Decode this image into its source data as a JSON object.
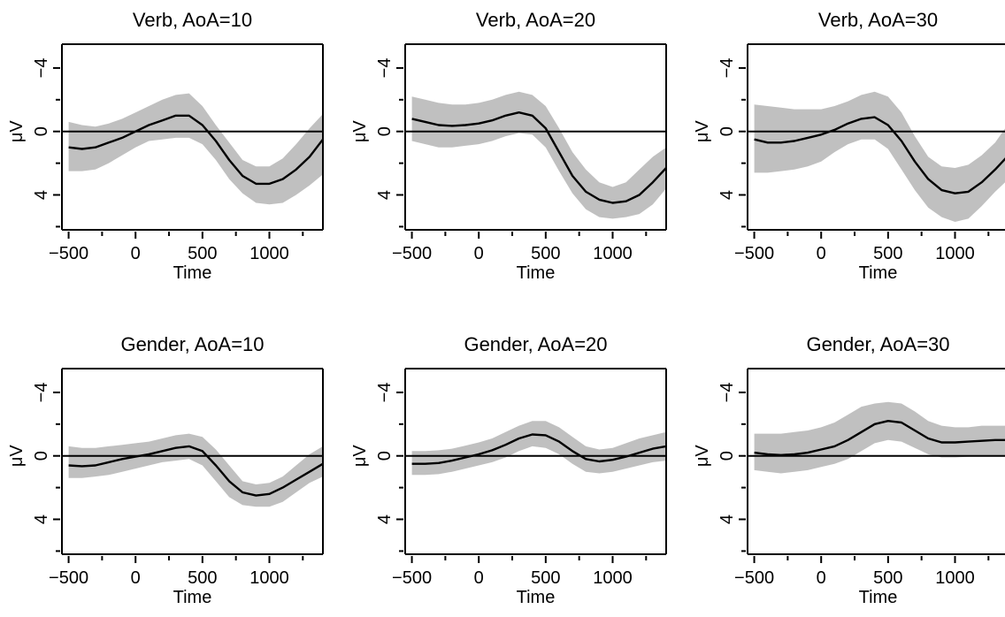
{
  "chart_data": [
    {
      "type": "line",
      "title": "Verb, AoA=10",
      "xlabel": "Time",
      "ylabel": "μV",
      "xlim": [
        -550,
        1400
      ],
      "ylim": [
        -5.5,
        6.2
      ],
      "y_reversed": true,
      "xticks": [
        -500,
        0,
        500,
        1000
      ],
      "xtick_labels": [
        "−500",
        "0",
        "500",
        "1000"
      ],
      "yticks": [
        -4,
        0,
        4
      ],
      "ytick_labels": [
        "−4",
        "0",
        "4"
      ],
      "reference_line_y": 0,
      "series": [
        {
          "x": [
            -500,
            -400,
            -300,
            -200,
            -100,
            0,
            100,
            200,
            300,
            400,
            500,
            600,
            700,
            800,
            900,
            1000,
            1100,
            1200,
            1300,
            1400
          ],
          "values": [
            1.0,
            1.1,
            1.0,
            0.7,
            0.4,
            0.0,
            -0.4,
            -0.7,
            -1.0,
            -1.0,
            -0.4,
            0.6,
            1.8,
            2.8,
            3.3,
            3.3,
            3.0,
            2.4,
            1.6,
            0.5
          ],
          "lower": [
            -0.6,
            -0.4,
            -0.3,
            -0.5,
            -0.8,
            -1.2,
            -1.6,
            -2.0,
            -2.3,
            -2.4,
            -1.6,
            -0.4,
            0.7,
            1.8,
            2.2,
            2.2,
            1.7,
            0.8,
            -0.2,
            -1.1
          ],
          "upper": [
            2.5,
            2.5,
            2.4,
            2.0,
            1.5,
            1.0,
            0.6,
            0.5,
            0.4,
            0.4,
            0.8,
            1.8,
            3.0,
            3.9,
            4.5,
            4.6,
            4.5,
            4.0,
            3.4,
            2.7
          ]
        }
      ]
    },
    {
      "type": "line",
      "title": "Verb, AoA=20",
      "xlabel": "Time",
      "ylabel": "μV",
      "xlim": [
        -550,
        1400
      ],
      "ylim": [
        -5.5,
        6.2
      ],
      "y_reversed": true,
      "xticks": [
        -500,
        0,
        500,
        1000
      ],
      "xtick_labels": [
        "−500",
        "0",
        "500",
        "1000"
      ],
      "yticks": [
        -4,
        0,
        4
      ],
      "ytick_labels": [
        "−4",
        "0",
        "4"
      ],
      "reference_line_y": 0,
      "series": [
        {
          "x": [
            -500,
            -400,
            -300,
            -200,
            -100,
            0,
            100,
            200,
            300,
            400,
            500,
            600,
            700,
            800,
            900,
            1000,
            1100,
            1200,
            1300,
            1400
          ],
          "values": [
            -0.8,
            -0.6,
            -0.4,
            -0.35,
            -0.4,
            -0.5,
            -0.7,
            -1.0,
            -1.2,
            -1.0,
            -0.2,
            1.3,
            2.8,
            3.8,
            4.3,
            4.5,
            4.4,
            4.0,
            3.2,
            2.3
          ],
          "lower": [
            -2.2,
            -2.0,
            -1.8,
            -1.7,
            -1.7,
            -1.8,
            -2.0,
            -2.3,
            -2.5,
            -2.3,
            -1.6,
            -0.2,
            1.3,
            2.4,
            3.2,
            3.5,
            3.2,
            2.4,
            1.6,
            1.0
          ],
          "upper": [
            0.6,
            0.8,
            1.0,
            1.0,
            0.9,
            0.8,
            0.6,
            0.3,
            0.1,
            0.2,
            1.0,
            2.5,
            3.9,
            4.9,
            5.4,
            5.5,
            5.4,
            5.2,
            4.6,
            3.6
          ]
        }
      ]
    },
    {
      "type": "line",
      "title": "Verb, AoA=30",
      "xlabel": "Time",
      "ylabel": "μV",
      "xlim": [
        -550,
        1400
      ],
      "ylim": [
        -5.5,
        6.2
      ],
      "y_reversed": true,
      "xticks": [
        -500,
        0,
        500,
        1000
      ],
      "xtick_labels": [
        "−500",
        "0",
        "500",
        "1000"
      ],
      "yticks": [
        -4,
        0,
        4
      ],
      "ytick_labels": [
        "−4",
        "0",
        "4"
      ],
      "reference_line_y": 0,
      "series": [
        {
          "x": [
            -500,
            -400,
            -300,
            -200,
            -100,
            0,
            100,
            200,
            300,
            400,
            500,
            600,
            700,
            800,
            900,
            1000,
            1100,
            1200,
            1300,
            1400
          ],
          "values": [
            0.5,
            0.7,
            0.7,
            0.6,
            0.4,
            0.2,
            -0.1,
            -0.5,
            -0.8,
            -0.9,
            -0.4,
            0.6,
            1.9,
            3.0,
            3.7,
            3.9,
            3.8,
            3.2,
            2.4,
            1.5
          ],
          "lower": [
            -1.7,
            -1.6,
            -1.5,
            -1.4,
            -1.4,
            -1.4,
            -1.6,
            -1.9,
            -2.3,
            -2.5,
            -2.2,
            -1.2,
            0.3,
            1.6,
            2.2,
            2.3,
            2.1,
            1.5,
            0.7,
            -0.5
          ],
          "upper": [
            2.6,
            2.6,
            2.5,
            2.4,
            2.2,
            1.9,
            1.3,
            0.8,
            0.5,
            0.5,
            1.1,
            2.4,
            3.7,
            4.8,
            5.4,
            5.7,
            5.5,
            4.7,
            3.8,
            3.0
          ]
        }
      ]
    },
    {
      "type": "line",
      "title": "Gender, AoA=10",
      "xlabel": "Time",
      "ylabel": "μV",
      "xlim": [
        -550,
        1400
      ],
      "ylim": [
        -5.5,
        6.2
      ],
      "y_reversed": true,
      "xticks": [
        -500,
        0,
        500,
        1000
      ],
      "xtick_labels": [
        "−500",
        "0",
        "500",
        "1000"
      ],
      "yticks": [
        -4,
        0,
        4
      ],
      "ytick_labels": [
        "−4",
        "0",
        "4"
      ],
      "reference_line_y": 0,
      "series": [
        {
          "x": [
            -500,
            -400,
            -300,
            -200,
            -100,
            0,
            100,
            200,
            300,
            400,
            500,
            600,
            700,
            800,
            900,
            1000,
            1100,
            1200,
            1300,
            1400
          ],
          "values": [
            0.6,
            0.65,
            0.6,
            0.4,
            0.2,
            0.05,
            -0.1,
            -0.3,
            -0.5,
            -0.6,
            -0.3,
            0.6,
            1.6,
            2.3,
            2.5,
            2.4,
            2.0,
            1.5,
            1.0,
            0.5
          ],
          "lower": [
            -0.6,
            -0.5,
            -0.5,
            -0.6,
            -0.7,
            -0.8,
            -0.9,
            -1.1,
            -1.3,
            -1.4,
            -1.2,
            -0.4,
            0.6,
            1.6,
            1.8,
            1.7,
            1.3,
            0.6,
            -0.1,
            -0.6
          ],
          "upper": [
            1.4,
            1.4,
            1.3,
            1.2,
            1.0,
            0.8,
            0.6,
            0.4,
            0.3,
            0.2,
            0.6,
            1.6,
            2.6,
            3.1,
            3.2,
            3.2,
            2.9,
            2.3,
            1.7,
            1.3
          ]
        }
      ]
    },
    {
      "type": "line",
      "title": "Gender, AoA=20",
      "xlabel": "Time",
      "ylabel": "μV",
      "xlim": [
        -550,
        1400
      ],
      "ylim": [
        -5.5,
        6.2
      ],
      "y_reversed": true,
      "xticks": [
        -500,
        0,
        500,
        1000
      ],
      "xtick_labels": [
        "−500",
        "0",
        "500",
        "1000"
      ],
      "yticks": [
        -4,
        0,
        4
      ],
      "ytick_labels": [
        "−4",
        "0",
        "4"
      ],
      "reference_line_y": 0,
      "series": [
        {
          "x": [
            -500,
            -400,
            -300,
            -200,
            -100,
            0,
            100,
            200,
            300,
            400,
            500,
            600,
            700,
            800,
            900,
            1000,
            1100,
            1200,
            1300,
            1400
          ],
          "values": [
            0.5,
            0.5,
            0.45,
            0.3,
            0.1,
            -0.1,
            -0.35,
            -0.7,
            -1.1,
            -1.35,
            -1.3,
            -0.9,
            -0.3,
            0.2,
            0.35,
            0.25,
            0.05,
            -0.2,
            -0.45,
            -0.6
          ],
          "lower": [
            -0.3,
            -0.3,
            -0.35,
            -0.45,
            -0.65,
            -0.85,
            -1.1,
            -1.5,
            -1.9,
            -2.2,
            -2.2,
            -1.8,
            -1.2,
            -0.6,
            -0.4,
            -0.5,
            -0.8,
            -1.1,
            -1.3,
            -1.5
          ],
          "upper": [
            1.2,
            1.2,
            1.15,
            1.0,
            0.8,
            0.6,
            0.4,
            0.1,
            -0.3,
            -0.6,
            -0.5,
            -0.1,
            0.5,
            1.0,
            1.1,
            1.0,
            0.8,
            0.6,
            0.4,
            0.3
          ]
        }
      ]
    },
    {
      "type": "line",
      "title": "Gender, AoA=30",
      "xlabel": "Time",
      "ylabel": "μV",
      "xlim": [
        -550,
        1400
      ],
      "ylim": [
        -5.5,
        6.2
      ],
      "y_reversed": true,
      "xticks": [
        -500,
        0,
        500,
        1000
      ],
      "xtick_labels": [
        "−500",
        "0",
        "500",
        "1000"
      ],
      "yticks": [
        -4,
        0,
        4
      ],
      "ytick_labels": [
        "−4",
        "0",
        "4"
      ],
      "reference_line_y": 0,
      "series": [
        {
          "x": [
            -500,
            -400,
            -300,
            -200,
            -100,
            0,
            100,
            200,
            300,
            400,
            500,
            600,
            700,
            800,
            900,
            1000,
            1100,
            1200,
            1300,
            1400
          ],
          "values": [
            -0.2,
            -0.1,
            -0.05,
            -0.1,
            -0.2,
            -0.4,
            -0.6,
            -1.0,
            -1.5,
            -2.0,
            -2.2,
            -2.1,
            -1.6,
            -1.1,
            -0.85,
            -0.85,
            -0.9,
            -0.95,
            -1.0,
            -1.0
          ],
          "lower": [
            -1.4,
            -1.4,
            -1.4,
            -1.5,
            -1.6,
            -1.8,
            -2.1,
            -2.6,
            -3.1,
            -3.3,
            -3.4,
            -3.3,
            -2.8,
            -2.2,
            -1.9,
            -1.8,
            -1.8,
            -1.9,
            -1.9,
            -1.9
          ],
          "upper": [
            0.9,
            1.0,
            1.1,
            1.0,
            0.9,
            0.7,
            0.5,
            0.2,
            -0.3,
            -0.8,
            -1.0,
            -0.9,
            -0.5,
            -0.1,
            0.1,
            0.1,
            0.05,
            0.05,
            0.05,
            0.05
          ]
        }
      ]
    }
  ],
  "colors": {
    "line": "#000000",
    "ribbon": "#c0c0c0",
    "axis": "#000000"
  }
}
